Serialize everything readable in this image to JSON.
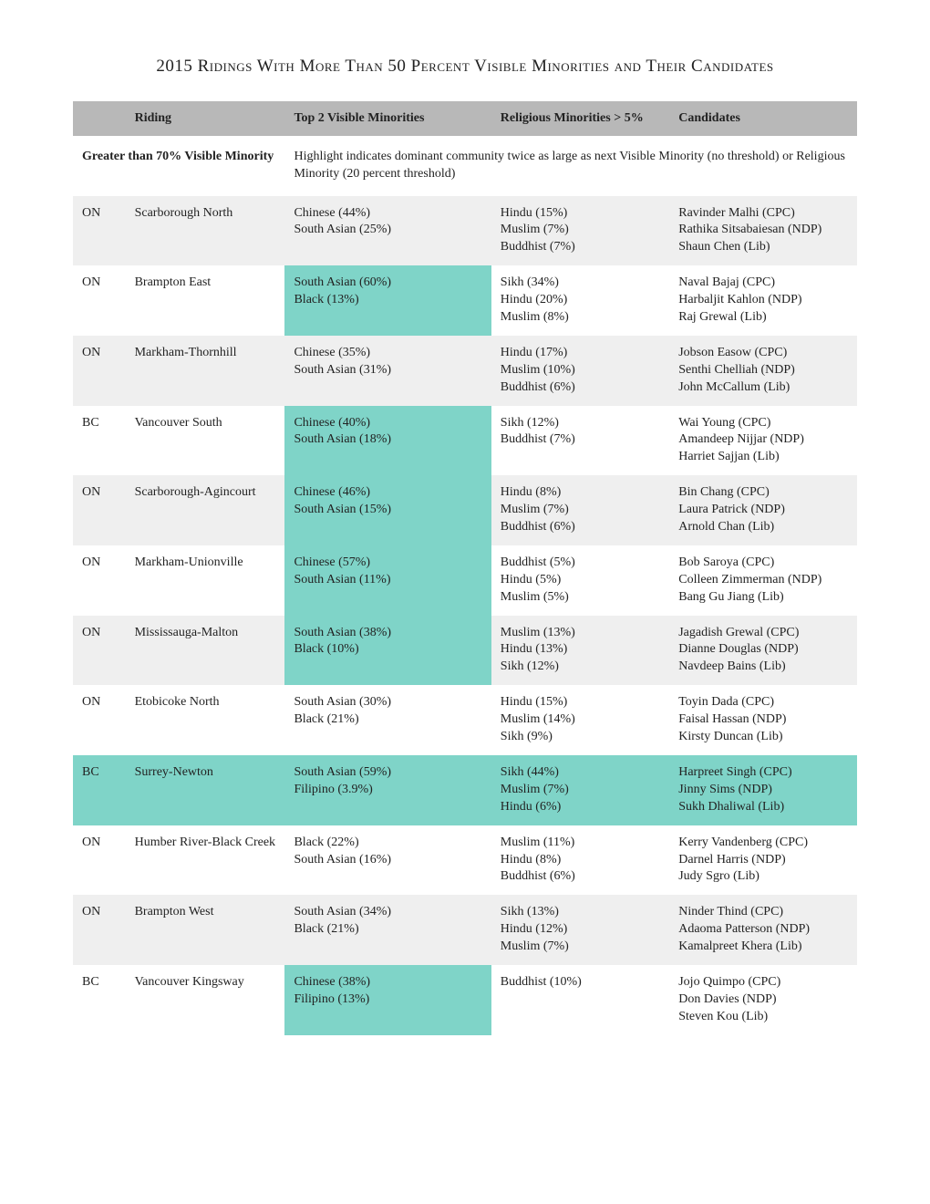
{
  "title": "2015 Ridings With More Than 50 Percent Visible Minorities and Their Candidates",
  "columns": {
    "prov": "",
    "riding": "Riding",
    "vismin": "Top 2 Visible Minorities",
    "relig": "Religious Minorities > 5%",
    "cand": "Candidates"
  },
  "section": {
    "label": "Greater than 70% Visible Minority",
    "note": "Highlight indicates dominant community twice as large as next Visible Minority (no threshold) or Religious Minority (20 percent threshold)"
  },
  "highlight_color": "#7fd4c8",
  "rows": [
    {
      "prov": "ON",
      "riding": "Scarborough North",
      "vismin": [
        "Chinese (44%)",
        "South Asian (25%)"
      ],
      "relig": [
        "Hindu (15%)",
        "Muslim (7%)",
        "Buddhist (7%)"
      ],
      "cand": [
        "Ravinder Malhi (CPC)",
        "Rathika Sitsabaiesan (NDP)",
        "Shaun Chen (Lib)"
      ],
      "bg": "even",
      "hl_vismin": false,
      "full_hl": false
    },
    {
      "prov": "ON",
      "riding": "Brampton East",
      "vismin": [
        "South Asian (60%)",
        "Black (13%)"
      ],
      "relig": [
        "Sikh (34%)",
        "Hindu (20%)",
        "Muslim (8%)"
      ],
      "cand": [
        "Naval Bajaj (CPC)",
        "Harbaljit Kahlon (NDP)",
        "Raj Grewal (Lib)"
      ],
      "bg": "odd",
      "hl_vismin": true,
      "full_hl": false
    },
    {
      "prov": "ON",
      "riding": "Markham-Thornhill",
      "vismin": [
        "Chinese (35%)",
        "South Asian (31%)"
      ],
      "relig": [
        "Hindu (17%)",
        "Muslim (10%)",
        "Buddhist (6%)"
      ],
      "cand": [
        "Jobson Easow (CPC)",
        "Senthi Chelliah (NDP)",
        "John McCallum (Lib)"
      ],
      "bg": "even",
      "hl_vismin": false,
      "full_hl": false
    },
    {
      "prov": "BC",
      "riding": "Vancouver South",
      "vismin": [
        "Chinese (40%)",
        "South Asian (18%)"
      ],
      "relig": [
        "Sikh (12%)",
        "Buddhist (7%)"
      ],
      "cand": [
        "Wai Young (CPC)",
        "Amandeep Nijjar (NDP)",
        "Harriet Sajjan (Lib)"
      ],
      "bg": "odd",
      "hl_vismin": true,
      "full_hl": false
    },
    {
      "prov": "ON",
      "riding": "Scarborough-Agincourt",
      "vismin": [
        "Chinese (46%)",
        "South Asian (15%)"
      ],
      "relig": [
        "Hindu (8%)",
        "Muslim (7%)",
        "Buddhist (6%)"
      ],
      "cand": [
        "Bin Chang (CPC)",
        "Laura Patrick (NDP)",
        "Arnold Chan (Lib)"
      ],
      "bg": "even",
      "hl_vismin": true,
      "full_hl": false
    },
    {
      "prov": "ON",
      "riding": "Markham-Unionville",
      "vismin": [
        "Chinese (57%)",
        "South Asian (11%)"
      ],
      "relig": [
        "Buddhist (5%)",
        "Hindu (5%)",
        "Muslim (5%)"
      ],
      "cand": [
        "Bob Saroya (CPC)",
        "Colleen Zimmerman (NDP)",
        "Bang Gu Jiang (Lib)"
      ],
      "bg": "odd",
      "hl_vismin": true,
      "full_hl": false
    },
    {
      "prov": "ON",
      "riding": "Mississauga-Malton",
      "vismin": [
        "South Asian (38%)",
        "Black (10%)"
      ],
      "relig": [
        "Muslim (13%)",
        "Hindu (13%)",
        "Sikh (12%)"
      ],
      "cand": [
        "Jagadish Grewal (CPC)",
        "Dianne Douglas (NDP)",
        "Navdeep Bains (Lib)"
      ],
      "bg": "even",
      "hl_vismin": true,
      "full_hl": false
    },
    {
      "prov": "ON",
      "riding": "Etobicoke North",
      "vismin": [
        "South Asian (30%)",
        "Black (21%)"
      ],
      "relig": [
        "Hindu (15%)",
        "Muslim (14%)",
        "Sikh (9%)"
      ],
      "cand": [
        "Toyin Dada (CPC)",
        "Faisal Hassan (NDP)",
        "Kirsty Duncan (Lib)"
      ],
      "bg": "odd",
      "hl_vismin": false,
      "full_hl": false
    },
    {
      "prov": "BC",
      "riding": "Surrey-Newton",
      "vismin": [
        "South Asian (59%)",
        "Filipino (3.9%)"
      ],
      "relig": [
        "Sikh (44%)",
        "Muslim (7%)",
        "Hindu (6%)"
      ],
      "cand": [
        "Harpreet Singh (CPC)",
        "Jinny Sims (NDP)",
        "Sukh Dhaliwal (Lib)"
      ],
      "bg": "even",
      "hl_vismin": true,
      "full_hl": true
    },
    {
      "prov": "ON",
      "riding": "Humber River-Black Creek",
      "vismin": [
        "Black (22%)",
        "South Asian (16%)"
      ],
      "relig": [
        "Muslim (11%)",
        "Hindu (8%)",
        "Buddhist (6%)"
      ],
      "cand": [
        "Kerry Vandenberg (CPC)",
        "Darnel Harris (NDP)",
        "Judy Sgro (Lib)"
      ],
      "bg": "odd",
      "hl_vismin": false,
      "full_hl": false
    },
    {
      "prov": "ON",
      "riding": "Brampton West",
      "vismin": [
        "South Asian (34%)",
        "Black (21%)"
      ],
      "relig": [
        "Sikh (13%)",
        "Hindu (12%)",
        "Muslim (7%)"
      ],
      "cand": [
        "Ninder Thind (CPC)",
        "Adaoma Patterson (NDP)",
        "Kamalpreet Khera (Lib)"
      ],
      "bg": "even",
      "hl_vismin": false,
      "full_hl": false
    },
    {
      "prov": "BC",
      "riding": "Vancouver Kingsway",
      "vismin": [
        "Chinese (38%)",
        "Filipino (13%)"
      ],
      "relig": [
        "Buddhist (10%)"
      ],
      "cand": [
        "Jojo Quimpo (CPC)",
        "Don Davies (NDP)",
        "Steven Kou (Lib)"
      ],
      "bg": "odd",
      "hl_vismin": true,
      "full_hl": false
    }
  ]
}
